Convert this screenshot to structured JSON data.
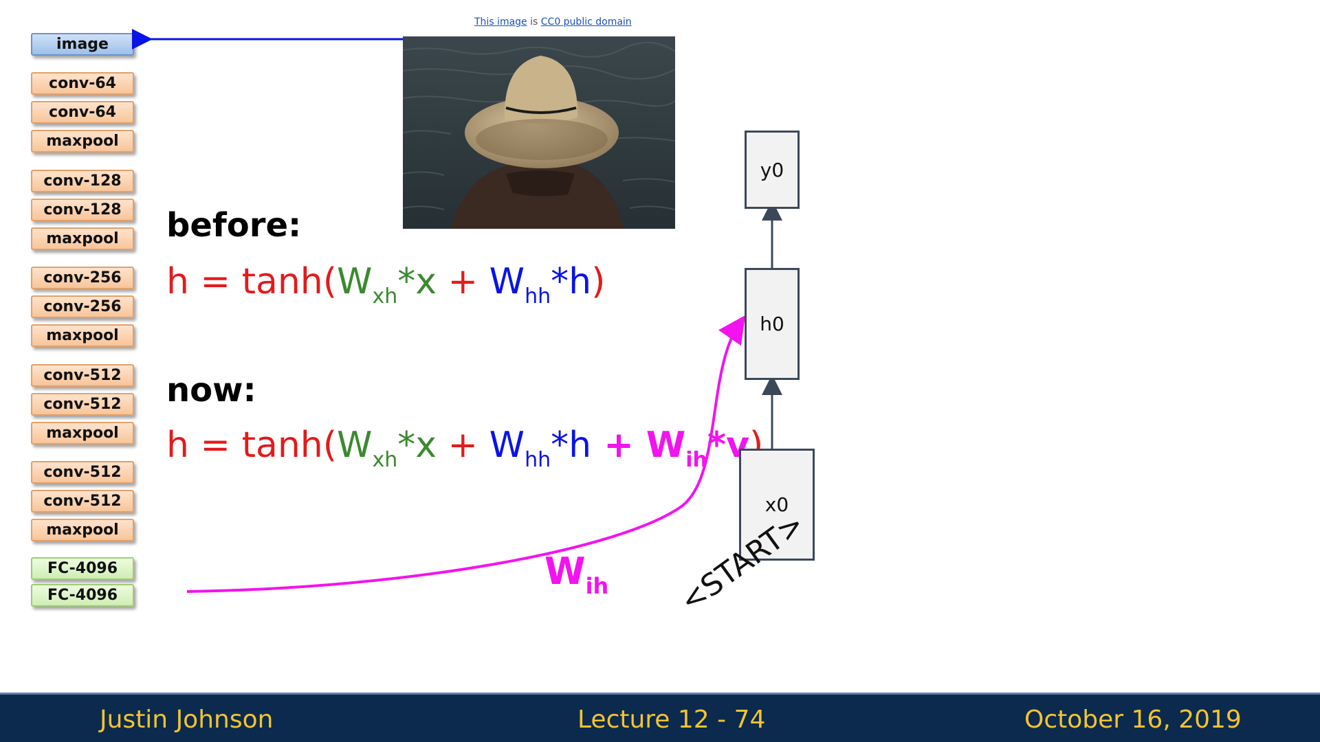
{
  "credit": {
    "text_1": "This image",
    "text_2": " is ",
    "text_3": "CC0 public domain"
  },
  "vgg_layers": [
    {
      "label": "image",
      "kind": "image"
    },
    {
      "label": "conv-64",
      "kind": "conv"
    },
    {
      "label": "conv-64",
      "kind": "conv"
    },
    {
      "label": "maxpool",
      "kind": "conv"
    },
    {
      "label": "conv-128",
      "kind": "conv"
    },
    {
      "label": "conv-128",
      "kind": "conv"
    },
    {
      "label": "maxpool",
      "kind": "conv"
    },
    {
      "label": "conv-256",
      "kind": "conv"
    },
    {
      "label": "conv-256",
      "kind": "conv"
    },
    {
      "label": "maxpool",
      "kind": "conv"
    },
    {
      "label": "conv-512",
      "kind": "conv"
    },
    {
      "label": "conv-512",
      "kind": "conv"
    },
    {
      "label": "maxpool",
      "kind": "conv"
    },
    {
      "label": "conv-512",
      "kind": "conv"
    },
    {
      "label": "conv-512",
      "kind": "conv"
    },
    {
      "label": "maxpool",
      "kind": "conv"
    },
    {
      "label": "FC-4096",
      "kind": "fc"
    },
    {
      "label": "FC-4096",
      "kind": "fc"
    }
  ],
  "before": {
    "heading": "before:",
    "h": "h = tanh(",
    "W1": "W",
    "W1_sub": "xh",
    "x_term": "*x",
    "plus1": " + ",
    "W2": "W",
    "W2_sub": "hh",
    "h_term": "*h",
    "close": ")"
  },
  "now": {
    "heading": "now:",
    "h": "h = tanh(",
    "W1": "W",
    "W1_sub": "xh",
    "x_term": "*x",
    "plus1": " + ",
    "W2": "W",
    "W2_sub": "hh",
    "h_term": "*h",
    "plus2": " + ",
    "W3": "W",
    "W3_sub": "ih",
    "v_term": "*v",
    "close": ")"
  },
  "rnn": {
    "y0": "y0",
    "h0": "h0",
    "x0": "x0",
    "start": "<START>"
  },
  "wih": {
    "W": "W",
    "sub": "ih"
  },
  "footer": {
    "author": "Justin Johnson",
    "lecture": "Lecture 12 - 74",
    "date": "October 16, 2019"
  },
  "colors": {
    "red": "#e31a1c",
    "green": "#3a8a2e",
    "blue": "#0a14e6",
    "magenta": "#f312f0",
    "footer_bg": "#0b2a4e",
    "footer_text": "#f4c430"
  }
}
